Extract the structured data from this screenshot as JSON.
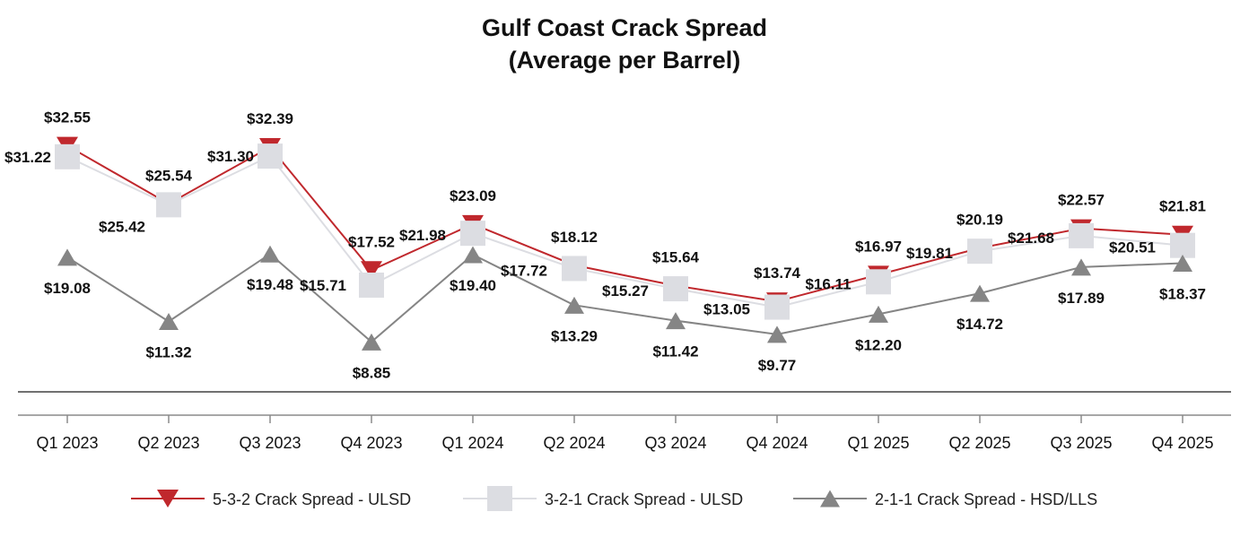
{
  "chart_data": {
    "type": "line",
    "title": "Gulf Coast Crack Spread",
    "subtitle": "(Average per Barrel)",
    "categories": [
      "Q1 2023",
      "Q2 2023",
      "Q3 2023",
      "Q4 2023",
      "Q1 2024",
      "Q2 2024",
      "Q3 2024",
      "Q4 2024",
      "Q1 2025",
      "Q2 2025",
      "Q3 2025",
      "Q4 2025"
    ],
    "ylim": [
      0,
      34
    ],
    "grid": false,
    "legend_position": "bottom",
    "series": [
      {
        "name": "5-3-2 Crack Spread - ULSD",
        "color": "#c0282d",
        "marker": "triangle-down",
        "values": [
          32.55,
          25.54,
          32.39,
          17.52,
          23.09,
          18.12,
          15.64,
          13.74,
          16.97,
          20.19,
          22.57,
          21.81
        ],
        "labels": [
          "$32.55",
          "$25.54",
          "$32.39",
          "$17.52",
          "$23.09",
          "$18.12",
          "$15.64",
          "$13.74",
          "$16.97",
          "$20.19",
          "$22.57",
          "$21.81"
        ]
      },
      {
        "name": "3-2-1 Crack Spread - ULSD",
        "color": "#dcdde2",
        "marker": "square",
        "values": [
          31.22,
          25.42,
          31.3,
          15.71,
          21.98,
          17.72,
          15.27,
          13.05,
          16.11,
          19.81,
          21.68,
          20.51
        ],
        "labels": [
          "$31.22",
          "$25.42",
          "$31.30",
          "$15.71",
          "$21.98",
          "$17.72",
          "$15.27",
          "$13.05",
          "$16.11",
          "$19.81",
          "$21.68",
          "$20.51"
        ]
      },
      {
        "name": "2-1-1 Crack Spread - HSD/LLS",
        "color": "#858585",
        "marker": "triangle-up",
        "values": [
          19.08,
          11.32,
          19.48,
          8.85,
          19.4,
          13.29,
          11.42,
          9.77,
          12.2,
          14.72,
          17.89,
          18.37
        ],
        "labels": [
          "$19.08",
          "$11.32",
          "$19.48",
          "$8.85",
          "$19.40",
          "$13.29",
          "$11.42",
          "$9.77",
          "$12.20",
          "$14.72",
          "$17.89",
          "$18.37"
        ]
      }
    ]
  }
}
